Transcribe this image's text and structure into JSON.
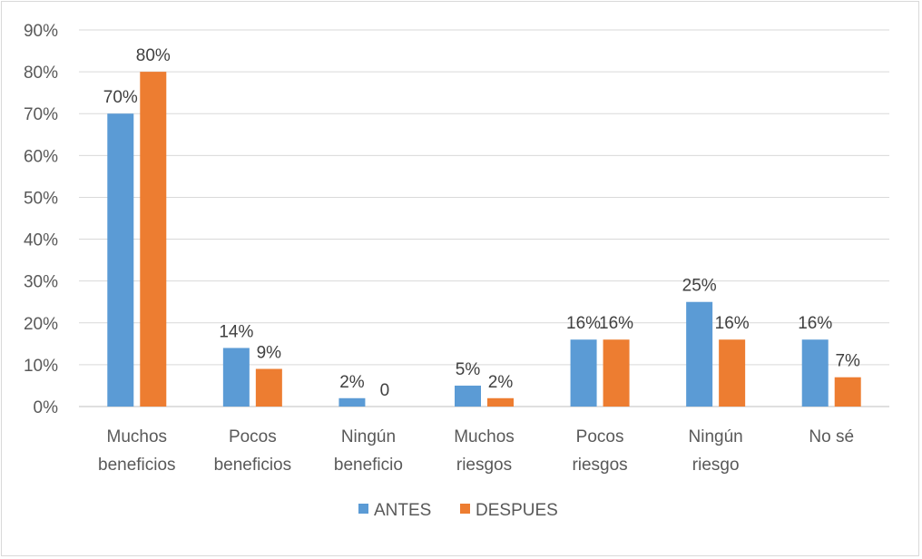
{
  "chart_data": {
    "type": "bar",
    "categories": [
      [
        "Muchos",
        "beneficios"
      ],
      [
        "Pocos",
        "beneficios"
      ],
      [
        "Ningún",
        "beneficio"
      ],
      [
        "Muchos",
        "riesgos"
      ],
      [
        "Pocos",
        "riesgos"
      ],
      [
        "Ningún",
        "riesgo"
      ],
      [
        "No sé"
      ]
    ],
    "series": [
      {
        "name": "ANTES",
        "color": "#5b9bd5",
        "values": [
          70,
          14,
          2,
          5,
          16,
          25,
          16
        ],
        "labels": [
          "70%",
          "14%",
          "2%",
          "5%",
          "16%",
          "25%",
          "16%"
        ]
      },
      {
        "name": "DESPUES",
        "color": "#ed7d31",
        "values": [
          80,
          9,
          0,
          2,
          16,
          16,
          7
        ],
        "labels": [
          "80%",
          "9%",
          "0",
          "2%",
          "16%",
          "16%",
          "7%"
        ]
      }
    ],
    "ylim": [
      0,
      90
    ],
    "yticks": [
      0,
      10,
      20,
      30,
      40,
      50,
      60,
      70,
      80,
      90
    ],
    "ytick_labels": [
      "0%",
      "10%",
      "20%",
      "30%",
      "40%",
      "50%",
      "60%",
      "70%",
      "80%",
      "90%"
    ],
    "title": "",
    "xlabel": "",
    "ylabel": "",
    "grid": true,
    "legend_position": "bottom"
  }
}
